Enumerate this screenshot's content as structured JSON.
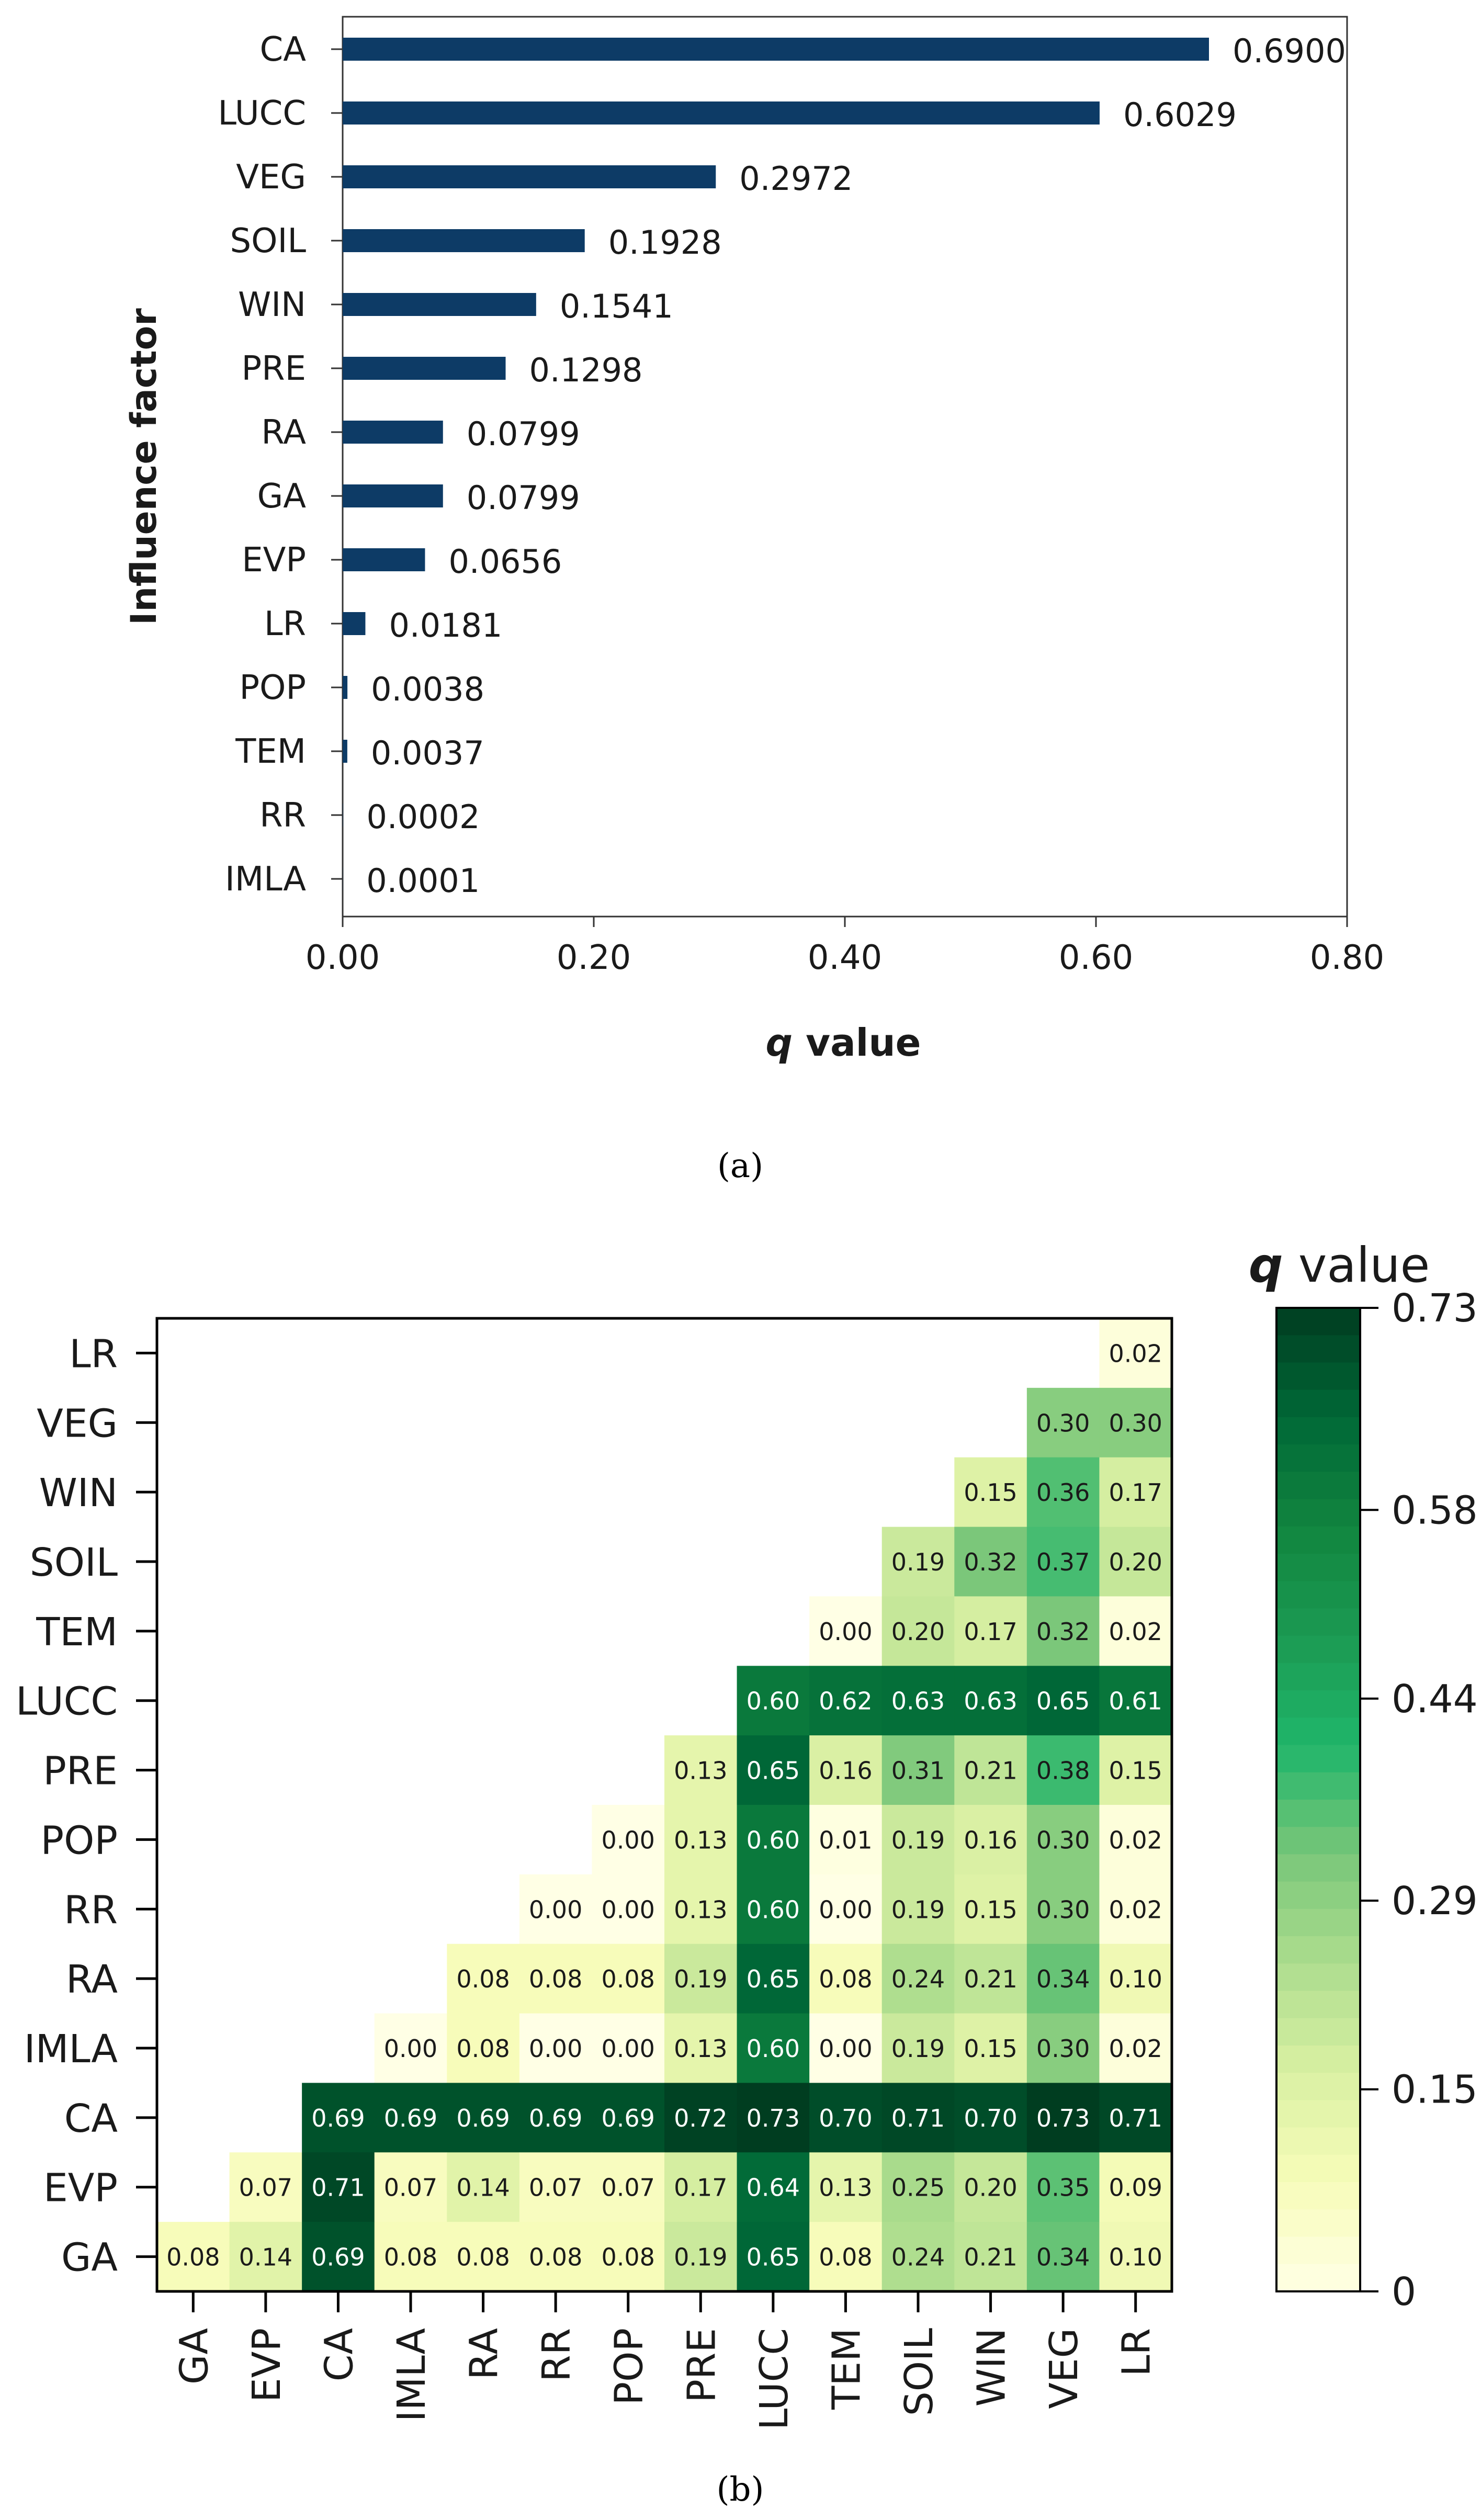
{
  "panel_a_caption": "(a)",
  "panel_b_caption": "(b)",
  "chart_data": [
    {
      "type": "bar",
      "orientation": "horizontal",
      "ylabel": "Influence factor",
      "xlabel_italic": "q",
      "xlabel_rest": " value",
      "xlim": [
        0,
        0.8
      ],
      "xticks": [
        "0.00",
        "0.20",
        "0.40",
        "0.60",
        "0.80"
      ],
      "categories": [
        "CA",
        "LUCC",
        "VEG",
        "SOIL",
        "WIN",
        "PRE",
        "RA",
        "GA",
        "EVP",
        "LR",
        "POP",
        "TEM",
        "RR",
        "IMLA"
      ],
      "values": [
        0.69,
        0.6029,
        0.2972,
        0.1928,
        0.1541,
        0.1298,
        0.0799,
        0.0799,
        0.0656,
        0.0181,
        0.0038,
        0.0037,
        0.0002,
        0.0001
      ],
      "value_labels": [
        "0.6900",
        "0.6029",
        "0.2972",
        "0.1928",
        "0.1541",
        "0.1298",
        "0.0799",
        "0.0799",
        "0.0656",
        "0.0181",
        "0.0038",
        "0.0037",
        "0.0002",
        "0.0001"
      ],
      "bar_color": "#0d3b66"
    },
    {
      "type": "heatmap",
      "shape": "lower-triangular",
      "x_categories": [
        "GA",
        "EVP",
        "CA",
        "IMLA",
        "RA",
        "RR",
        "POP",
        "PRE",
        "LUCC",
        "TEM",
        "SOIL",
        "WIN",
        "VEG",
        "LR"
      ],
      "y_categories_top_to_bottom": [
        "LR",
        "VEG",
        "WIN",
        "SOIL",
        "TEM",
        "LUCC",
        "PRE",
        "POP",
        "RR",
        "RA",
        "IMLA",
        "CA",
        "EVP",
        "GA"
      ],
      "rows": [
        [
          "",
          "",
          "",
          "",
          "",
          "",
          "",
          "",
          "",
          "",
          "",
          "",
          "",
          "0.02"
        ],
        [
          "",
          "",
          "",
          "",
          "",
          "",
          "",
          "",
          "",
          "",
          "",
          "",
          "0.30",
          "0.30"
        ],
        [
          "",
          "",
          "",
          "",
          "",
          "",
          "",
          "",
          "",
          "",
          "",
          "0.15",
          "0.36",
          "0.17"
        ],
        [
          "",
          "",
          "",
          "",
          "",
          "",
          "",
          "",
          "",
          "",
          "0.19",
          "0.32",
          "0.37",
          "0.20"
        ],
        [
          "",
          "",
          "",
          "",
          "",
          "",
          "",
          "",
          "",
          "0.00",
          "0.20",
          "0.17",
          "0.32",
          "0.02"
        ],
        [
          "",
          "",
          "",
          "",
          "",
          "",
          "",
          "",
          "0.60",
          "0.62",
          "0.63",
          "0.63",
          "0.65",
          "0.61"
        ],
        [
          "",
          "",
          "",
          "",
          "",
          "",
          "",
          "0.13",
          "0.65",
          "0.16",
          "0.31",
          "0.21",
          "0.38",
          "0.15"
        ],
        [
          "",
          "",
          "",
          "",
          "",
          "",
          "0.00",
          "0.13",
          "0.60",
          "0.01",
          "0.19",
          "0.16",
          "0.30",
          "0.02"
        ],
        [
          "",
          "",
          "",
          "",
          "",
          "0.00",
          "0.00",
          "0.13",
          "0.60",
          "0.00",
          "0.19",
          "0.15",
          "0.30",
          "0.02"
        ],
        [
          "",
          "",
          "",
          "",
          "0.08",
          "0.08",
          "0.08",
          "0.19",
          "0.65",
          "0.08",
          "0.24",
          "0.21",
          "0.34",
          "0.10"
        ],
        [
          "",
          "",
          "",
          "0.00",
          "0.08",
          "0.00",
          "0.00",
          "0.13",
          "0.60",
          "0.00",
          "0.19",
          "0.15",
          "0.30",
          "0.02"
        ],
        [
          "",
          "",
          "0.69",
          "0.69",
          "0.69",
          "0.69",
          "0.69",
          "0.72",
          "0.73",
          "0.70",
          "0.71",
          "0.70",
          "0.73",
          "0.71"
        ],
        [
          "",
          "0.07",
          "0.71",
          "0.07",
          "0.14",
          "0.07",
          "0.07",
          "0.17",
          "0.64",
          "0.13",
          "0.25",
          "0.20",
          "0.35",
          "0.09"
        ],
        [
          "0.08",
          "0.14",
          "0.69",
          "0.08",
          "0.08",
          "0.08",
          "0.08",
          "0.19",
          "0.65",
          "0.08",
          "0.24",
          "0.21",
          "0.34",
          "0.10"
        ]
      ],
      "vmin": 0,
      "vmax": 0.73,
      "colorbar_title_italic": "q",
      "colorbar_title_rest": " value",
      "colorbar_ticks": [
        "0.73",
        "0.58",
        "0.44",
        "0.29",
        "0.15",
        "0"
      ],
      "colormap": [
        "#ffffe5",
        "#f7fcb9",
        "#d9f0a3",
        "#addd8e",
        "#78c679",
        "#1fb56a",
        "#1b9a52",
        "#11853f",
        "#006837",
        "#003d20"
      ]
    }
  ]
}
